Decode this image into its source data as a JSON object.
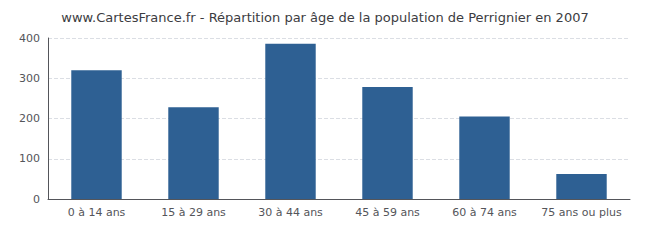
{
  "chart_data": {
    "type": "bar",
    "title": "www.CartesFrance.fr - Répartition par âge de la population de Perrignier en 2007",
    "categories": [
      "0 à 14 ans",
      "15 à 29 ans",
      "30 à 44 ans",
      "45 à 59 ans",
      "60 à 74 ans",
      "75 ans ou plus"
    ],
    "values": [
      320,
      228,
      386,
      278,
      205,
      62
    ],
    "color": "#2e6093",
    "ylim": [
      0,
      400
    ],
    "yticks": [
      0,
      100,
      200,
      300,
      400
    ],
    "grid": true
  }
}
